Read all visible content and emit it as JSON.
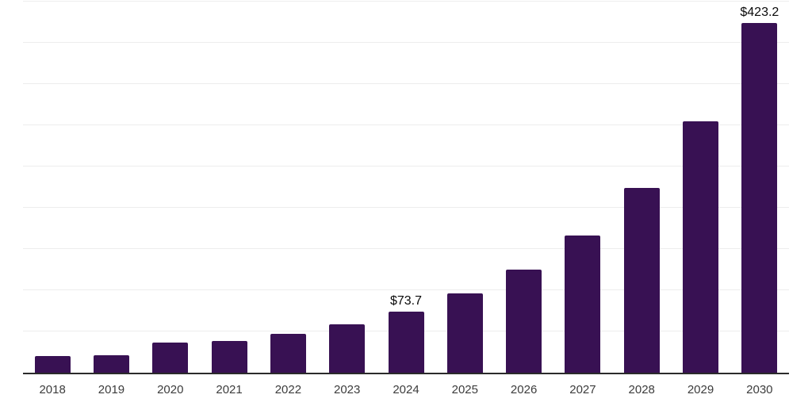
{
  "chart_data": {
    "type": "bar",
    "title": "",
    "xlabel": "",
    "ylabel": "",
    "categories": [
      "2018",
      "2019",
      "2020",
      "2021",
      "2022",
      "2023",
      "2024",
      "2025",
      "2026",
      "2027",
      "2028",
      "2029",
      "2030"
    ],
    "values": [
      19.9,
      21.1,
      36.8,
      38.0,
      47.5,
      58.5,
      73.7,
      95.5,
      124.7,
      166.3,
      223.5,
      304.4,
      423.2
    ],
    "point_labels": [
      "",
      "",
      "",
      "",
      "",
      "",
      "$73.7",
      "",
      "",
      "",
      "",
      "",
      "$423.2"
    ],
    "ylim": [
      0,
      450
    ],
    "gridline_interval": 50,
    "grid": "horizontal",
    "legend": "none",
    "y_axis_tick_labels_visible": false,
    "colors": {
      "bar": "#381153",
      "gridline": "#ededed",
      "axis_line": "#2b2b2b",
      "value_label": "#0a0a0a",
      "tick_label": "#3c3c3c",
      "background": "#ffffff"
    }
  }
}
